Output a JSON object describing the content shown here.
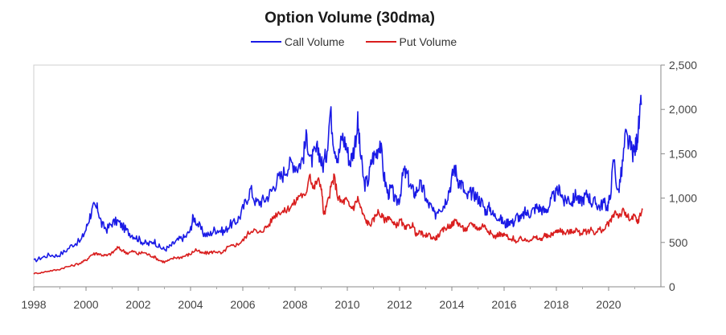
{
  "colors": {
    "call": "#1a1ae6",
    "put": "#d91e1e",
    "axis": "#999999"
  },
  "chart_data": {
    "type": "line",
    "title": "Option Volume (30dma)",
    "xlabel": "",
    "ylabel": "",
    "xlim": [
      1998,
      2022
    ],
    "ylim": [
      0,
      2500
    ],
    "grid": false,
    "legend_position": "top",
    "x_ticks": [
      "1998",
      "2000",
      "2002",
      "2004",
      "2006",
      "2008",
      "2010",
      "2012",
      "2014",
      "2016",
      "2018",
      "2020"
    ],
    "y_ticks": [
      "0",
      "500",
      "1,000",
      "1,500",
      "2,000",
      "2,500"
    ],
    "series": [
      {
        "name": "Call Volume",
        "color": "#1a1ae6",
        "points": [
          [
            1998.0,
            290
          ],
          [
            1998.3,
            330
          ],
          [
            1998.6,
            360
          ],
          [
            1998.9,
            350
          ],
          [
            1999.2,
            400
          ],
          [
            1999.5,
            480
          ],
          [
            1999.8,
            520
          ],
          [
            2000.0,
            650
          ],
          [
            2000.15,
            800
          ],
          [
            2000.3,
            900
          ],
          [
            2000.45,
            880
          ],
          [
            2000.6,
            700
          ],
          [
            2000.8,
            650
          ],
          [
            2001.0,
            720
          ],
          [
            2001.2,
            740
          ],
          [
            2001.4,
            680
          ],
          [
            2001.6,
            620
          ],
          [
            2001.8,
            580
          ],
          [
            2002.0,
            540
          ],
          [
            2002.2,
            500
          ],
          [
            2002.4,
            480
          ],
          [
            2002.6,
            520
          ],
          [
            2002.8,
            450
          ],
          [
            2003.0,
            420
          ],
          [
            2003.2,
            450
          ],
          [
            2003.4,
            500
          ],
          [
            2003.6,
            540
          ],
          [
            2003.8,
            560
          ],
          [
            2004.0,
            640
          ],
          [
            2004.1,
            790
          ],
          [
            2004.3,
            700
          ],
          [
            2004.5,
            600
          ],
          [
            2004.7,
            580
          ],
          [
            2004.9,
            640
          ],
          [
            2005.1,
            640
          ],
          [
            2005.3,
            620
          ],
          [
            2005.5,
            700
          ],
          [
            2005.7,
            720
          ],
          [
            2005.9,
            800
          ],
          [
            2006.1,
            950
          ],
          [
            2006.3,
            1100
          ],
          [
            2006.5,
            950
          ],
          [
            2006.7,
            960
          ],
          [
            2006.9,
            1000
          ],
          [
            2007.1,
            1080
          ],
          [
            2007.3,
            1200
          ],
          [
            2007.5,
            1250
          ],
          [
            2007.7,
            1350
          ],
          [
            2007.9,
            1400
          ],
          [
            2008.1,
            1350
          ],
          [
            2008.3,
            1450
          ],
          [
            2008.45,
            1700
          ],
          [
            2008.6,
            1400
          ],
          [
            2008.75,
            1500
          ],
          [
            2008.9,
            1550
          ],
          [
            2009.05,
            1350
          ],
          [
            2009.2,
            1500
          ],
          [
            2009.35,
            1980
          ],
          [
            2009.5,
            1600
          ],
          [
            2009.65,
            1450
          ],
          [
            2009.8,
            1700
          ],
          [
            2009.95,
            1600
          ],
          [
            2010.1,
            1400
          ],
          [
            2010.25,
            1550
          ],
          [
            2010.4,
            1850
          ],
          [
            2010.5,
            1500
          ],
          [
            2010.65,
            1150
          ],
          [
            2010.8,
            1200
          ],
          [
            2010.95,
            1450
          ],
          [
            2011.1,
            1500
          ],
          [
            2011.25,
            1650
          ],
          [
            2011.4,
            1250
          ],
          [
            2011.55,
            1050
          ],
          [
            2011.7,
            1100
          ],
          [
            2011.85,
            950
          ],
          [
            2012.0,
            1000
          ],
          [
            2012.15,
            1300
          ],
          [
            2012.3,
            1250
          ],
          [
            2012.45,
            1100
          ],
          [
            2012.6,
            1050
          ],
          [
            2012.75,
            1150
          ],
          [
            2012.9,
            1100
          ],
          [
            2013.05,
            950
          ],
          [
            2013.2,
            900
          ],
          [
            2013.35,
            800
          ],
          [
            2013.5,
            900
          ],
          [
            2013.65,
            900
          ],
          [
            2013.8,
            1000
          ],
          [
            2013.95,
            1150
          ],
          [
            2014.1,
            1350
          ],
          [
            2014.25,
            1200
          ],
          [
            2014.4,
            1150
          ],
          [
            2014.55,
            1000
          ],
          [
            2014.7,
            1050
          ],
          [
            2014.85,
            1050
          ],
          [
            2015.0,
            1000
          ],
          [
            2015.15,
            950
          ],
          [
            2015.3,
            850
          ],
          [
            2015.45,
            900
          ],
          [
            2015.6,
            800
          ],
          [
            2015.75,
            800
          ],
          [
            2015.9,
            750
          ],
          [
            2016.05,
            700
          ],
          [
            2016.2,
            750
          ],
          [
            2016.35,
            720
          ],
          [
            2016.5,
            800
          ],
          [
            2016.65,
            760
          ],
          [
            2016.8,
            840
          ],
          [
            2016.95,
            820
          ],
          [
            2017.1,
            860
          ],
          [
            2017.25,
            900
          ],
          [
            2017.4,
            880
          ],
          [
            2017.55,
            850
          ],
          [
            2017.7,
            900
          ],
          [
            2017.85,
            1000
          ],
          [
            2018.0,
            1050
          ],
          [
            2018.15,
            1100
          ],
          [
            2018.3,
            950
          ],
          [
            2018.45,
            1000
          ],
          [
            2018.6,
            950
          ],
          [
            2018.75,
            1050
          ],
          [
            2018.9,
            950
          ],
          [
            2019.05,
            1000
          ],
          [
            2019.2,
            1050
          ],
          [
            2019.35,
            950
          ],
          [
            2019.5,
            950
          ],
          [
            2019.65,
            900
          ],
          [
            2019.8,
            950
          ],
          [
            2019.95,
            900
          ],
          [
            2020.05,
            1000
          ],
          [
            2020.2,
            1450
          ],
          [
            2020.35,
            1050
          ],
          [
            2020.5,
            1300
          ],
          [
            2020.65,
            1700
          ],
          [
            2020.8,
            1600
          ],
          [
            2020.95,
            1500
          ],
          [
            2021.05,
            1600
          ],
          [
            2021.15,
            1800
          ],
          [
            2021.25,
            2050
          ]
        ]
      },
      {
        "name": "Put Volume",
        "color": "#d91e1e",
        "points": [
          [
            1998.0,
            150
          ],
          [
            1998.3,
            160
          ],
          [
            1998.6,
            180
          ],
          [
            1998.9,
            190
          ],
          [
            1999.2,
            220
          ],
          [
            1999.5,
            240
          ],
          [
            1999.8,
            270
          ],
          [
            2000.0,
            300
          ],
          [
            2000.2,
            360
          ],
          [
            2000.4,
            380
          ],
          [
            2000.6,
            360
          ],
          [
            2000.8,
            350
          ],
          [
            2001.0,
            380
          ],
          [
            2001.2,
            440
          ],
          [
            2001.4,
            410
          ],
          [
            2001.6,
            380
          ],
          [
            2001.8,
            400
          ],
          [
            2002.0,
            370
          ],
          [
            2002.2,
            390
          ],
          [
            2002.4,
            360
          ],
          [
            2002.6,
            340
          ],
          [
            2002.8,
            300
          ],
          [
            2003.0,
            280
          ],
          [
            2003.2,
            300
          ],
          [
            2003.4,
            330
          ],
          [
            2003.6,
            330
          ],
          [
            2003.8,
            350
          ],
          [
            2004.0,
            370
          ],
          [
            2004.2,
            420
          ],
          [
            2004.4,
            380
          ],
          [
            2004.6,
            380
          ],
          [
            2004.8,
            390
          ],
          [
            2005.0,
            400
          ],
          [
            2005.2,
            370
          ],
          [
            2005.4,
            440
          ],
          [
            2005.6,
            460
          ],
          [
            2005.8,
            480
          ],
          [
            2006.0,
            520
          ],
          [
            2006.2,
            600
          ],
          [
            2006.4,
            650
          ],
          [
            2006.6,
            600
          ],
          [
            2006.8,
            650
          ],
          [
            2007.0,
            700
          ],
          [
            2007.2,
            800
          ],
          [
            2007.4,
            850
          ],
          [
            2007.6,
            850
          ],
          [
            2007.8,
            900
          ],
          [
            2008.0,
            950
          ],
          [
            2008.2,
            1050
          ],
          [
            2008.4,
            1000
          ],
          [
            2008.55,
            1300
          ],
          [
            2008.7,
            1100
          ],
          [
            2008.85,
            1200
          ],
          [
            2009.0,
            1150
          ],
          [
            2009.1,
            800
          ],
          [
            2009.25,
            950
          ],
          [
            2009.4,
            1150
          ],
          [
            2009.5,
            1230
          ],
          [
            2009.65,
            1000
          ],
          [
            2009.8,
            950
          ],
          [
            2009.95,
            980
          ],
          [
            2010.1,
            900
          ],
          [
            2010.25,
            900
          ],
          [
            2010.4,
            1000
          ],
          [
            2010.55,
            850
          ],
          [
            2010.7,
            750
          ],
          [
            2010.85,
            700
          ],
          [
            2011.0,
            750
          ],
          [
            2011.15,
            850
          ],
          [
            2011.3,
            800
          ],
          [
            2011.45,
            750
          ],
          [
            2011.6,
            800
          ],
          [
            2011.75,
            700
          ],
          [
            2011.9,
            700
          ],
          [
            2012.05,
            750
          ],
          [
            2012.2,
            650
          ],
          [
            2012.35,
            680
          ],
          [
            2012.5,
            700
          ],
          [
            2012.65,
            580
          ],
          [
            2012.8,
            620
          ],
          [
            2012.95,
            560
          ],
          [
            2013.1,
            600
          ],
          [
            2013.25,
            550
          ],
          [
            2013.4,
            550
          ],
          [
            2013.55,
            600
          ],
          [
            2013.7,
            650
          ],
          [
            2013.85,
            680
          ],
          [
            2014.0,
            700
          ],
          [
            2014.15,
            750
          ],
          [
            2014.3,
            700
          ],
          [
            2014.45,
            650
          ],
          [
            2014.6,
            650
          ],
          [
            2014.75,
            720
          ],
          [
            2014.9,
            680
          ],
          [
            2015.05,
            650
          ],
          [
            2015.2,
            700
          ],
          [
            2015.35,
            650
          ],
          [
            2015.5,
            600
          ],
          [
            2015.65,
            560
          ],
          [
            2015.8,
            600
          ],
          [
            2015.95,
            580
          ],
          [
            2016.1,
            580
          ],
          [
            2016.2,
            520
          ],
          [
            2016.35,
            550
          ],
          [
            2016.5,
            500
          ],
          [
            2016.65,
            550
          ],
          [
            2016.8,
            520
          ],
          [
            2016.95,
            530
          ],
          [
            2017.1,
            550
          ],
          [
            2017.25,
            550
          ],
          [
            2017.4,
            530
          ],
          [
            2017.55,
            580
          ],
          [
            2017.7,
            560
          ],
          [
            2017.85,
            600
          ],
          [
            2018.0,
            620
          ],
          [
            2018.15,
            650
          ],
          [
            2018.3,
            600
          ],
          [
            2018.45,
            620
          ],
          [
            2018.6,
            620
          ],
          [
            2018.75,
            650
          ],
          [
            2018.9,
            600
          ],
          [
            2019.05,
            620
          ],
          [
            2019.2,
            620
          ],
          [
            2019.35,
            650
          ],
          [
            2019.5,
            600
          ],
          [
            2019.65,
            650
          ],
          [
            2019.8,
            630
          ],
          [
            2019.95,
            700
          ],
          [
            2020.1,
            750
          ],
          [
            2020.25,
            850
          ],
          [
            2020.4,
            800
          ],
          [
            2020.55,
            850
          ],
          [
            2020.7,
            800
          ],
          [
            2020.85,
            750
          ],
          [
            2021.0,
            800
          ],
          [
            2021.1,
            720
          ],
          [
            2021.2,
            800
          ],
          [
            2021.3,
            870
          ]
        ]
      }
    ]
  }
}
